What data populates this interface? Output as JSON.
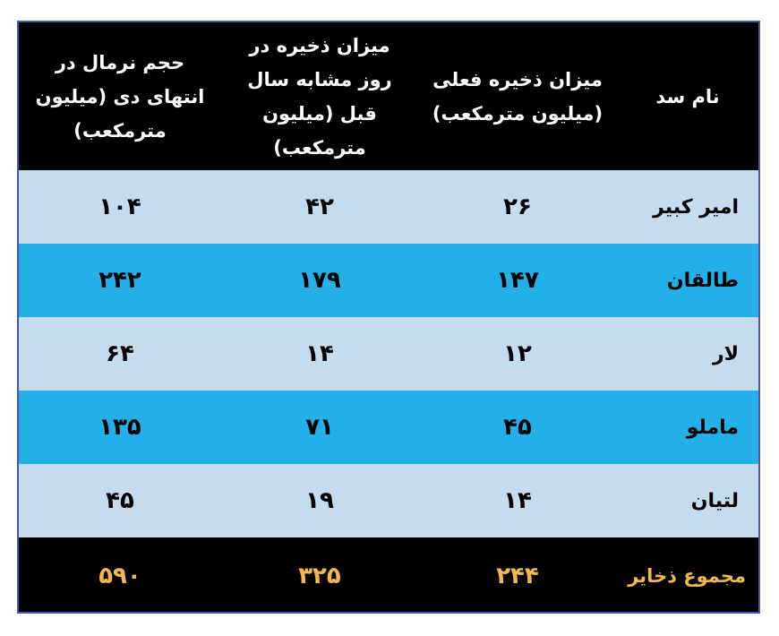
{
  "table": {
    "headers": {
      "name": "نام سد",
      "current": "میزان ذخیره فعلی (میلیون مترمکعب)",
      "previous": "میزان ذخیره در روز مشابه سال قبل (میلیون مترمکعب)",
      "normal": "حجم نرمال در انتهای دی (میلیون مترمکعب)"
    },
    "rows": [
      {
        "name": "امیر کبیر",
        "current": "۲۶",
        "previous": "۴۲",
        "normal": "۱۰۴"
      },
      {
        "name": "طالقان",
        "current": "۱۴۷",
        "previous": "۱۷۹",
        "normal": "۲۴۲"
      },
      {
        "name": "لار",
        "current": "۱۲",
        "previous": "۱۴",
        "normal": "۶۴"
      },
      {
        "name": "ماملو",
        "current": "۴۵",
        "previous": "۷۱",
        "normal": "۱۳۵"
      },
      {
        "name": "لتیان",
        "current": "۱۴",
        "previous": "۱۹",
        "normal": "۴۵"
      }
    ],
    "total": {
      "name": "مجموع ذخایر",
      "current": "۲۴۴",
      "previous": "۳۲۵",
      "normal": "۵۹۰"
    }
  },
  "colors": {
    "header_bg": "#000000",
    "row_light": "#c5dbee",
    "row_bright": "#23b0e8",
    "total_text": "#f2b84b",
    "border": "#4a5aa8"
  }
}
